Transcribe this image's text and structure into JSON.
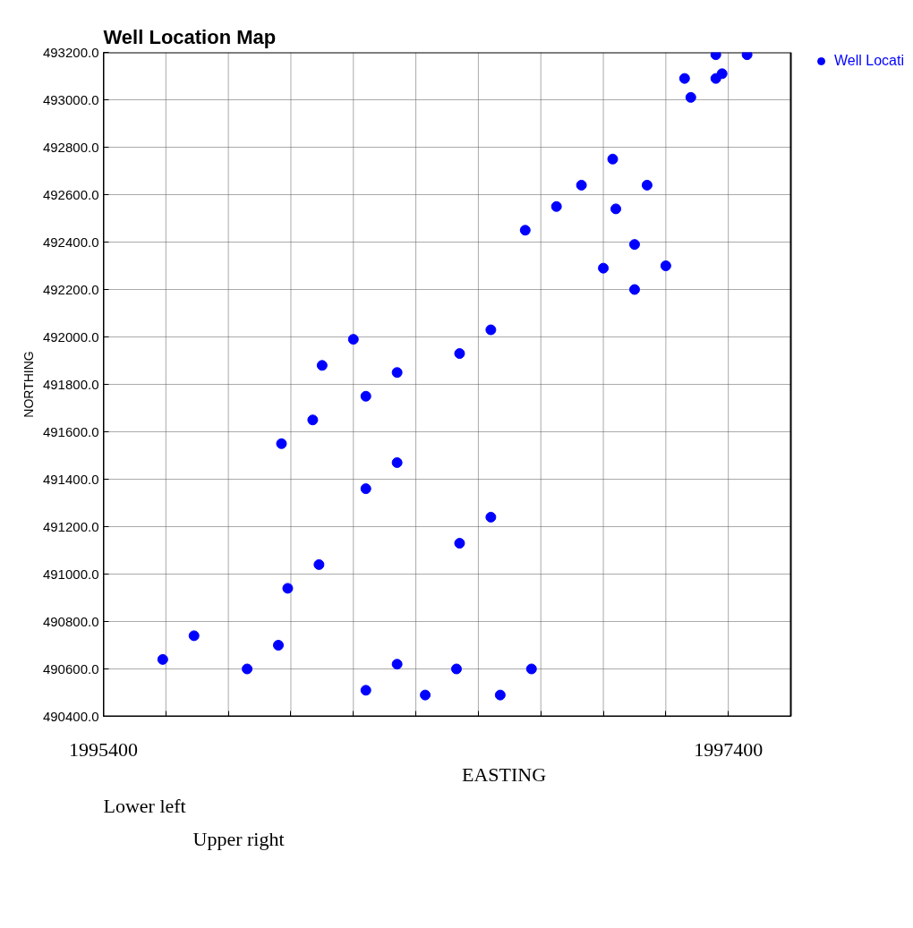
{
  "chart_data": {
    "type": "scatter",
    "title": "Well Location Map",
    "xlabel": "EASTING",
    "ylabel": "NORTHING",
    "x": [
      1997360,
      1997460,
      1997260,
      1997360,
      1997380,
      1997280,
      1997030,
      1996930,
      1997140,
      1996850,
      1997040,
      1996750,
      1997100,
      1997000,
      1997200,
      1997100,
      1996640,
      1996200,
      1996540,
      1996100,
      1996340,
      1996240,
      1996070,
      1995970,
      1996340,
      1996240,
      1996640,
      1996540,
      1996090,
      1995990,
      1995690,
      1995590,
      1995860,
      1995960,
      1996340,
      1996530,
      1996770,
      1996240,
      1996430,
      1996670
    ],
    "series": [
      {
        "name": "Well Locati",
        "color": "#0000ff",
        "values": [
          493190,
          493190,
          493090,
          493090,
          493110,
          493010,
          492750,
          492640,
          492640,
          492550,
          492540,
          492450,
          492390,
          492290,
          492300,
          492200,
          492030,
          491990,
          491930,
          491880,
          491850,
          491750,
          491650,
          491550,
          491470,
          491360,
          491240,
          491130,
          491040,
          490940,
          490740,
          490640,
          490600,
          490700,
          490620,
          490600,
          490600,
          490510,
          490490,
          490490
        ]
      }
    ],
    "xlim": [
      1995400,
      1997600
    ],
    "xticks": [
      {
        "value": 1995400,
        "label": "1995400"
      },
      {
        "value": 1995600,
        "label": null
      },
      {
        "value": 1995800,
        "label": null
      },
      {
        "value": 1996000,
        "label": null
      },
      {
        "value": 1996200,
        "label": null
      },
      {
        "value": 1996400,
        "label": null
      },
      {
        "value": 1996600,
        "label": null
      },
      {
        "value": 1996800,
        "label": null
      },
      {
        "value": 1997000,
        "label": null
      },
      {
        "value": 1997200,
        "label": null
      },
      {
        "value": 1997400,
        "label": "1997400"
      },
      {
        "value": 1997600,
        "label": null
      }
    ],
    "ylim": [
      490400,
      493200
    ],
    "yticks": [
      {
        "value": 490400,
        "label": "490400.0"
      },
      {
        "value": 490600,
        "label": "490600.0"
      },
      {
        "value": 490800,
        "label": "490800.0"
      },
      {
        "value": 491000,
        "label": "491000.0"
      },
      {
        "value": 491200,
        "label": "491200.0"
      },
      {
        "value": 491400,
        "label": "491400.0"
      },
      {
        "value": 491600,
        "label": "491600.0"
      },
      {
        "value": 491800,
        "label": "491800.0"
      },
      {
        "value": 492000,
        "label": "492000.0"
      },
      {
        "value": 492200,
        "label": "492200.0"
      },
      {
        "value": 492400,
        "label": "492400.0"
      },
      {
        "value": 492600,
        "label": "492600.0"
      },
      {
        "value": 492800,
        "label": "492800.0"
      },
      {
        "value": 493000,
        "label": "493000.0"
      },
      {
        "value": 493200,
        "label": "493200.0"
      }
    ],
    "annotations": [
      "Lower left",
      "Upper right"
    ],
    "grid": true,
    "legend": "top right",
    "marker": "circle"
  }
}
